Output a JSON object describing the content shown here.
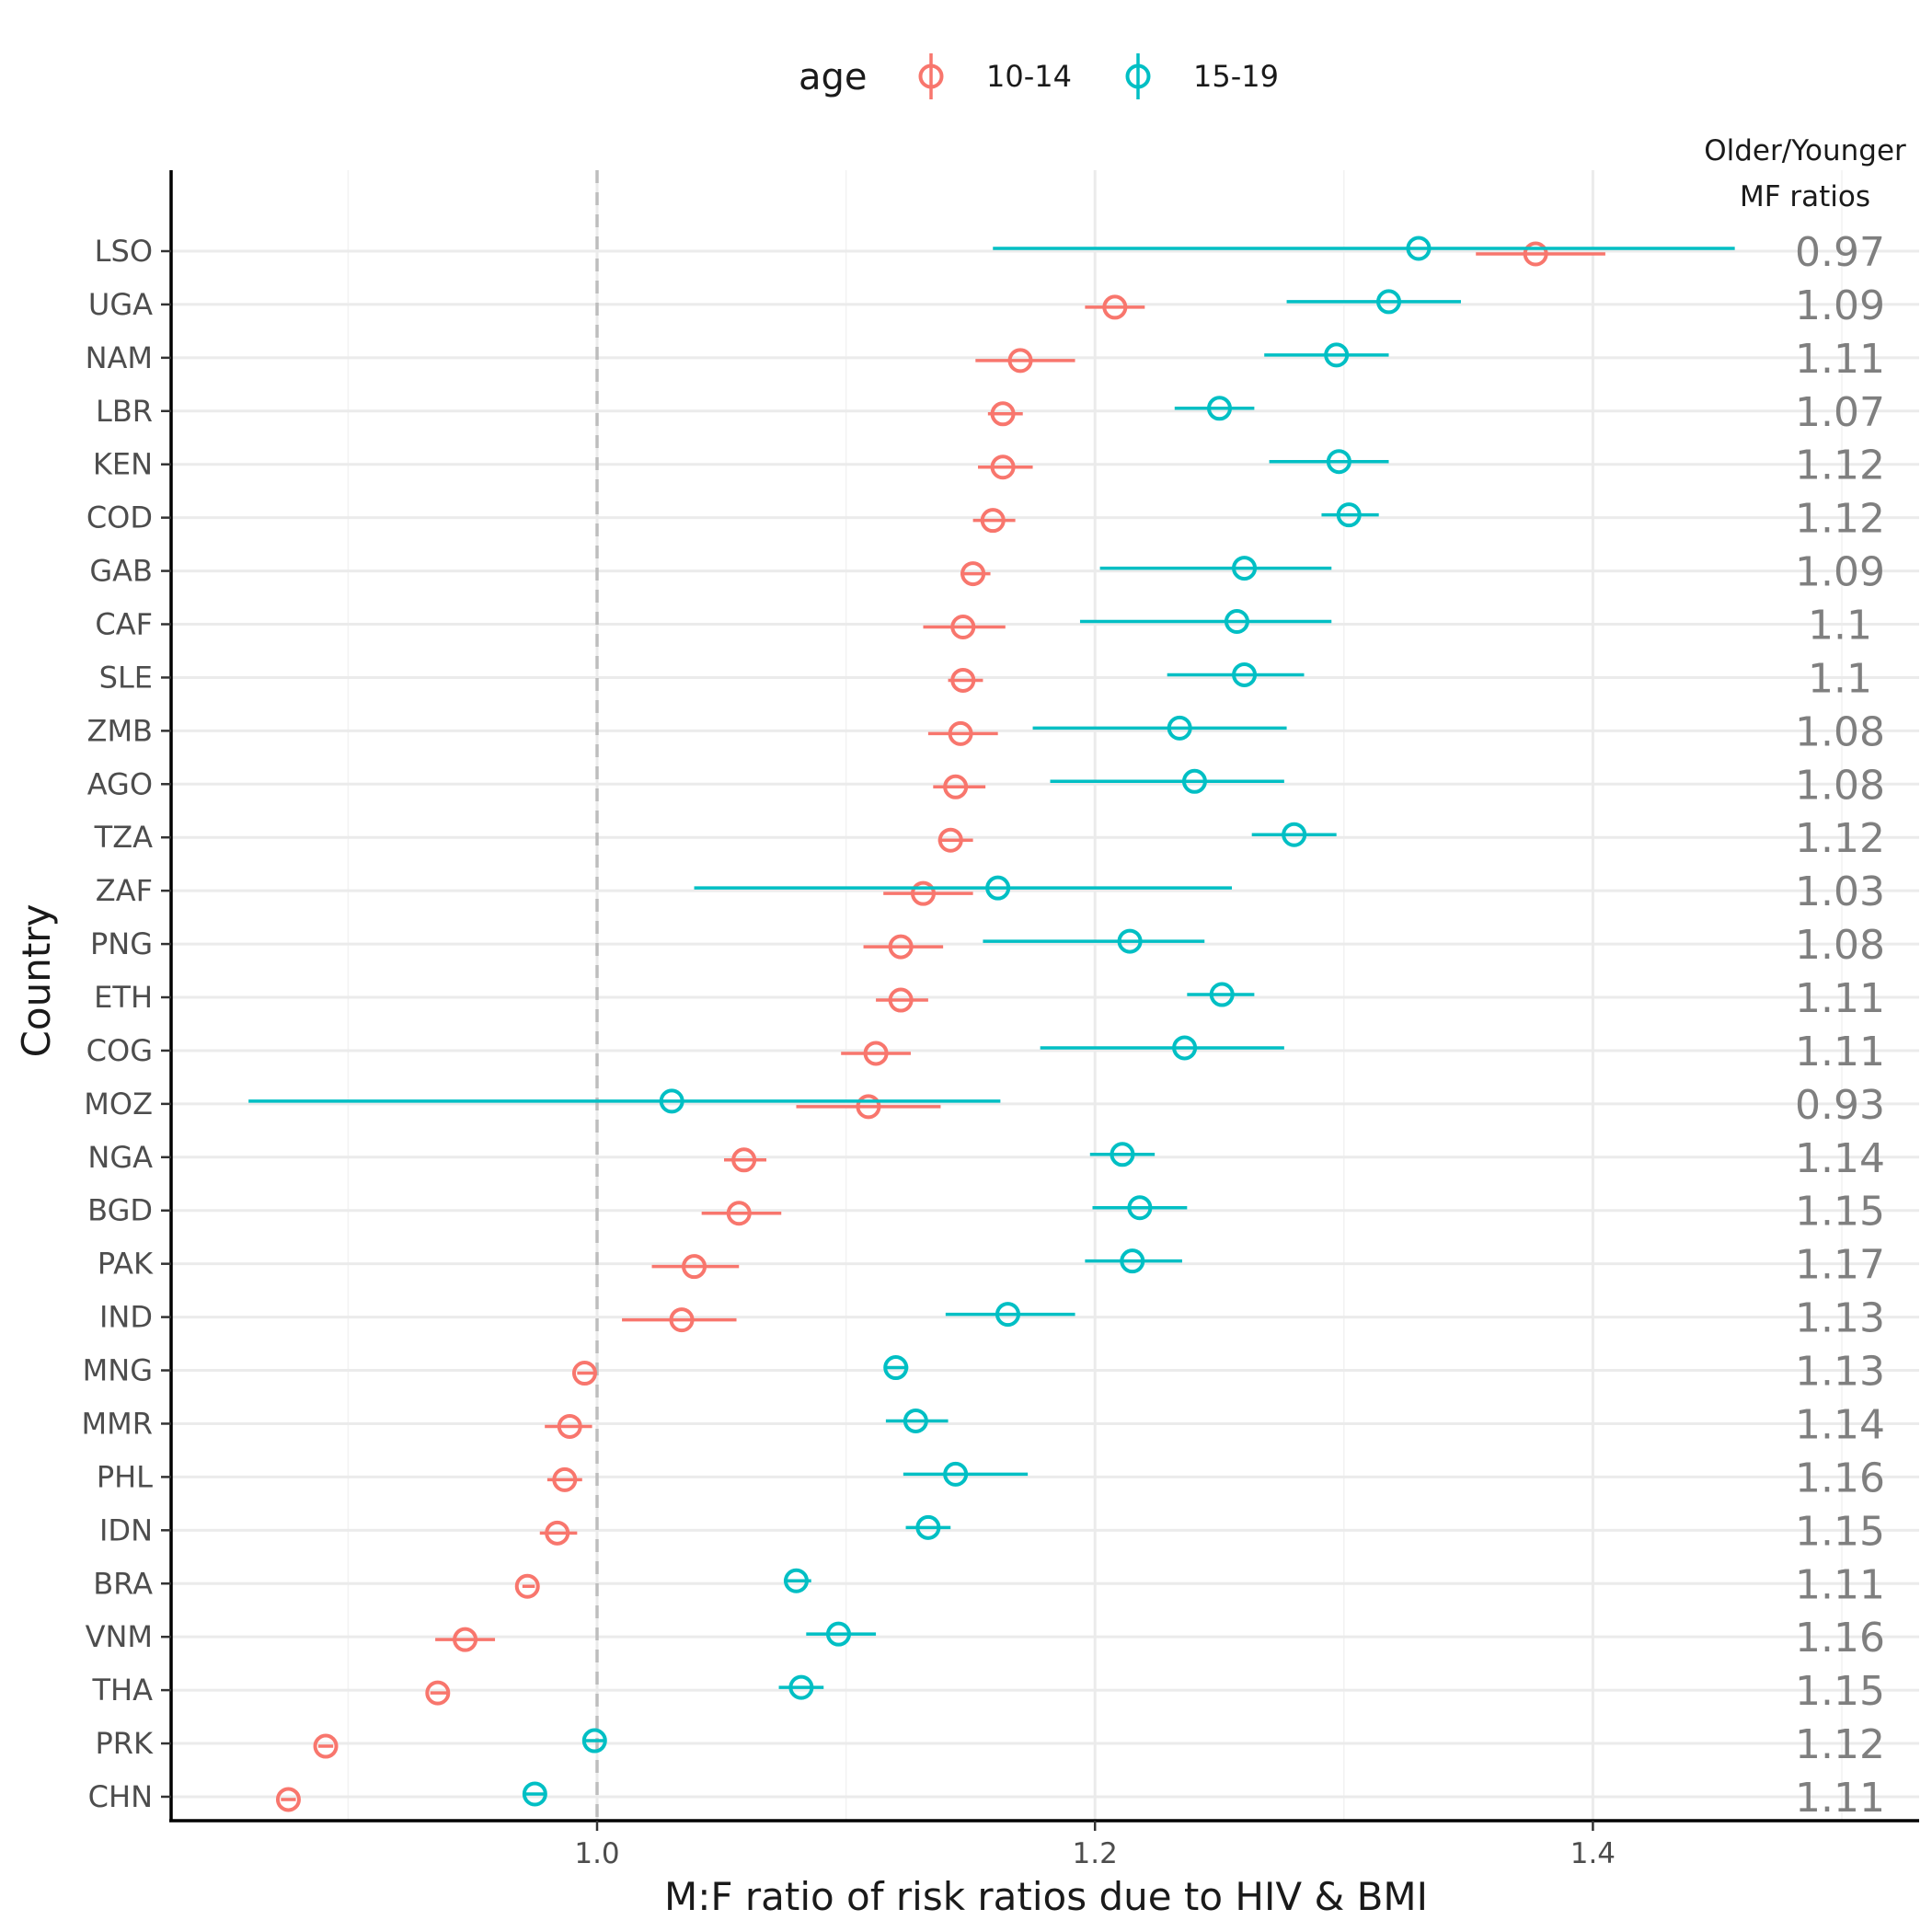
{
  "chart_data": {
    "type": "dot-errorbar",
    "xlabel": "M:F ratio of risk ratios due to HIV & BMI",
    "ylabel": "Country",
    "xlim": [
      0.827,
      1.531
    ],
    "xticks": [
      "1.0",
      "1.2",
      "1.4"
    ],
    "reference_line": 1.0,
    "grid": true,
    "legend": {
      "title": "age",
      "position": "top",
      "entries": [
        {
          "label": "10-14",
          "color": "#F8766D"
        },
        {
          "label": "15-19",
          "color": "#00BFC4"
        }
      ]
    },
    "annotation_header": [
      "Older/Younger",
      "MF ratios"
    ],
    "countries": [
      "LSO",
      "UGA",
      "NAM",
      "LBR",
      "KEN",
      "COD",
      "GAB",
      "CAF",
      "SLE",
      "ZMB",
      "AGO",
      "TZA",
      "ZAF",
      "PNG",
      "ETH",
      "COG",
      "MOZ",
      "NGA",
      "BGD",
      "PAK",
      "IND",
      "MNG",
      "MMR",
      "PHL",
      "IDN",
      "BRA",
      "VNM",
      "THA",
      "PRK",
      "CHN"
    ],
    "ratios": [
      "0.97",
      "1.09",
      "1.11",
      "1.07",
      "1.12",
      "1.12",
      "1.09",
      "1.1",
      "1.1",
      "1.08",
      "1.08",
      "1.12",
      "1.03",
      "1.08",
      "1.11",
      "1.11",
      "0.93",
      "1.14",
      "1.15",
      "1.17",
      "1.13",
      "1.13",
      "1.14",
      "1.16",
      "1.15",
      "1.11",
      "1.16",
      "1.15",
      "1.12",
      "1.11"
    ],
    "series": [
      {
        "name": "10-14",
        "color": "#F8766D",
        "est": [
          1.377,
          1.208,
          1.17,
          1.163,
          1.163,
          1.159,
          1.151,
          1.147,
          1.147,
          1.146,
          1.144,
          1.142,
          1.131,
          1.122,
          1.122,
          1.112,
          1.109,
          1.059,
          1.057,
          1.039,
          1.034,
          0.995,
          0.989,
          0.987,
          0.984,
          0.972,
          0.947,
          0.936,
          0.891,
          0.876
        ],
        "lower": [
          1.353,
          1.196,
          1.152,
          1.157,
          1.153,
          1.151,
          1.146,
          1.131,
          1.141,
          1.133,
          1.135,
          1.137,
          1.115,
          1.107,
          1.112,
          1.098,
          1.08,
          1.051,
          1.042,
          1.022,
          1.01,
          0.992,
          0.979,
          0.98,
          0.977,
          0.97,
          0.935,
          0.933,
          0.888,
          0.873
        ],
        "upper": [
          1.405,
          1.22,
          1.192,
          1.171,
          1.175,
          1.168,
          1.158,
          1.164,
          1.155,
          1.161,
          1.156,
          1.151,
          1.151,
          1.139,
          1.133,
          1.126,
          1.138,
          1.068,
          1.074,
          1.057,
          1.056,
          0.999,
          0.998,
          0.994,
          0.992,
          0.975,
          0.959,
          0.94,
          0.894,
          0.879
        ]
      },
      {
        "name": "15-19",
        "color": "#00BFC4",
        "est": [
          1.33,
          1.318,
          1.297,
          1.25,
          1.298,
          1.302,
          1.26,
          1.257,
          1.26,
          1.234,
          1.24,
          1.28,
          1.161,
          1.214,
          1.251,
          1.236,
          1.03,
          1.211,
          1.218,
          1.215,
          1.165,
          1.12,
          1.128,
          1.144,
          1.133,
          1.08,
          1.097,
          1.082,
          0.999,
          0.975
        ],
        "lower": [
          1.159,
          1.277,
          1.268,
          1.232,
          1.27,
          1.291,
          1.202,
          1.194,
          1.229,
          1.175,
          1.182,
          1.263,
          1.039,
          1.155,
          1.237,
          1.178,
          0.86,
          1.198,
          1.199,
          1.196,
          1.14,
          1.116,
          1.116,
          1.123,
          1.124,
          1.075,
          1.084,
          1.073,
          0.995,
          0.971
        ],
        "upper": [
          1.457,
          1.347,
          1.318,
          1.264,
          1.318,
          1.314,
          1.295,
          1.295,
          1.284,
          1.277,
          1.276,
          1.297,
          1.255,
          1.244,
          1.264,
          1.276,
          1.162,
          1.224,
          1.237,
          1.235,
          1.192,
          1.125,
          1.141,
          1.173,
          1.142,
          1.086,
          1.112,
          1.091,
          1.003,
          0.979
        ]
      }
    ]
  }
}
